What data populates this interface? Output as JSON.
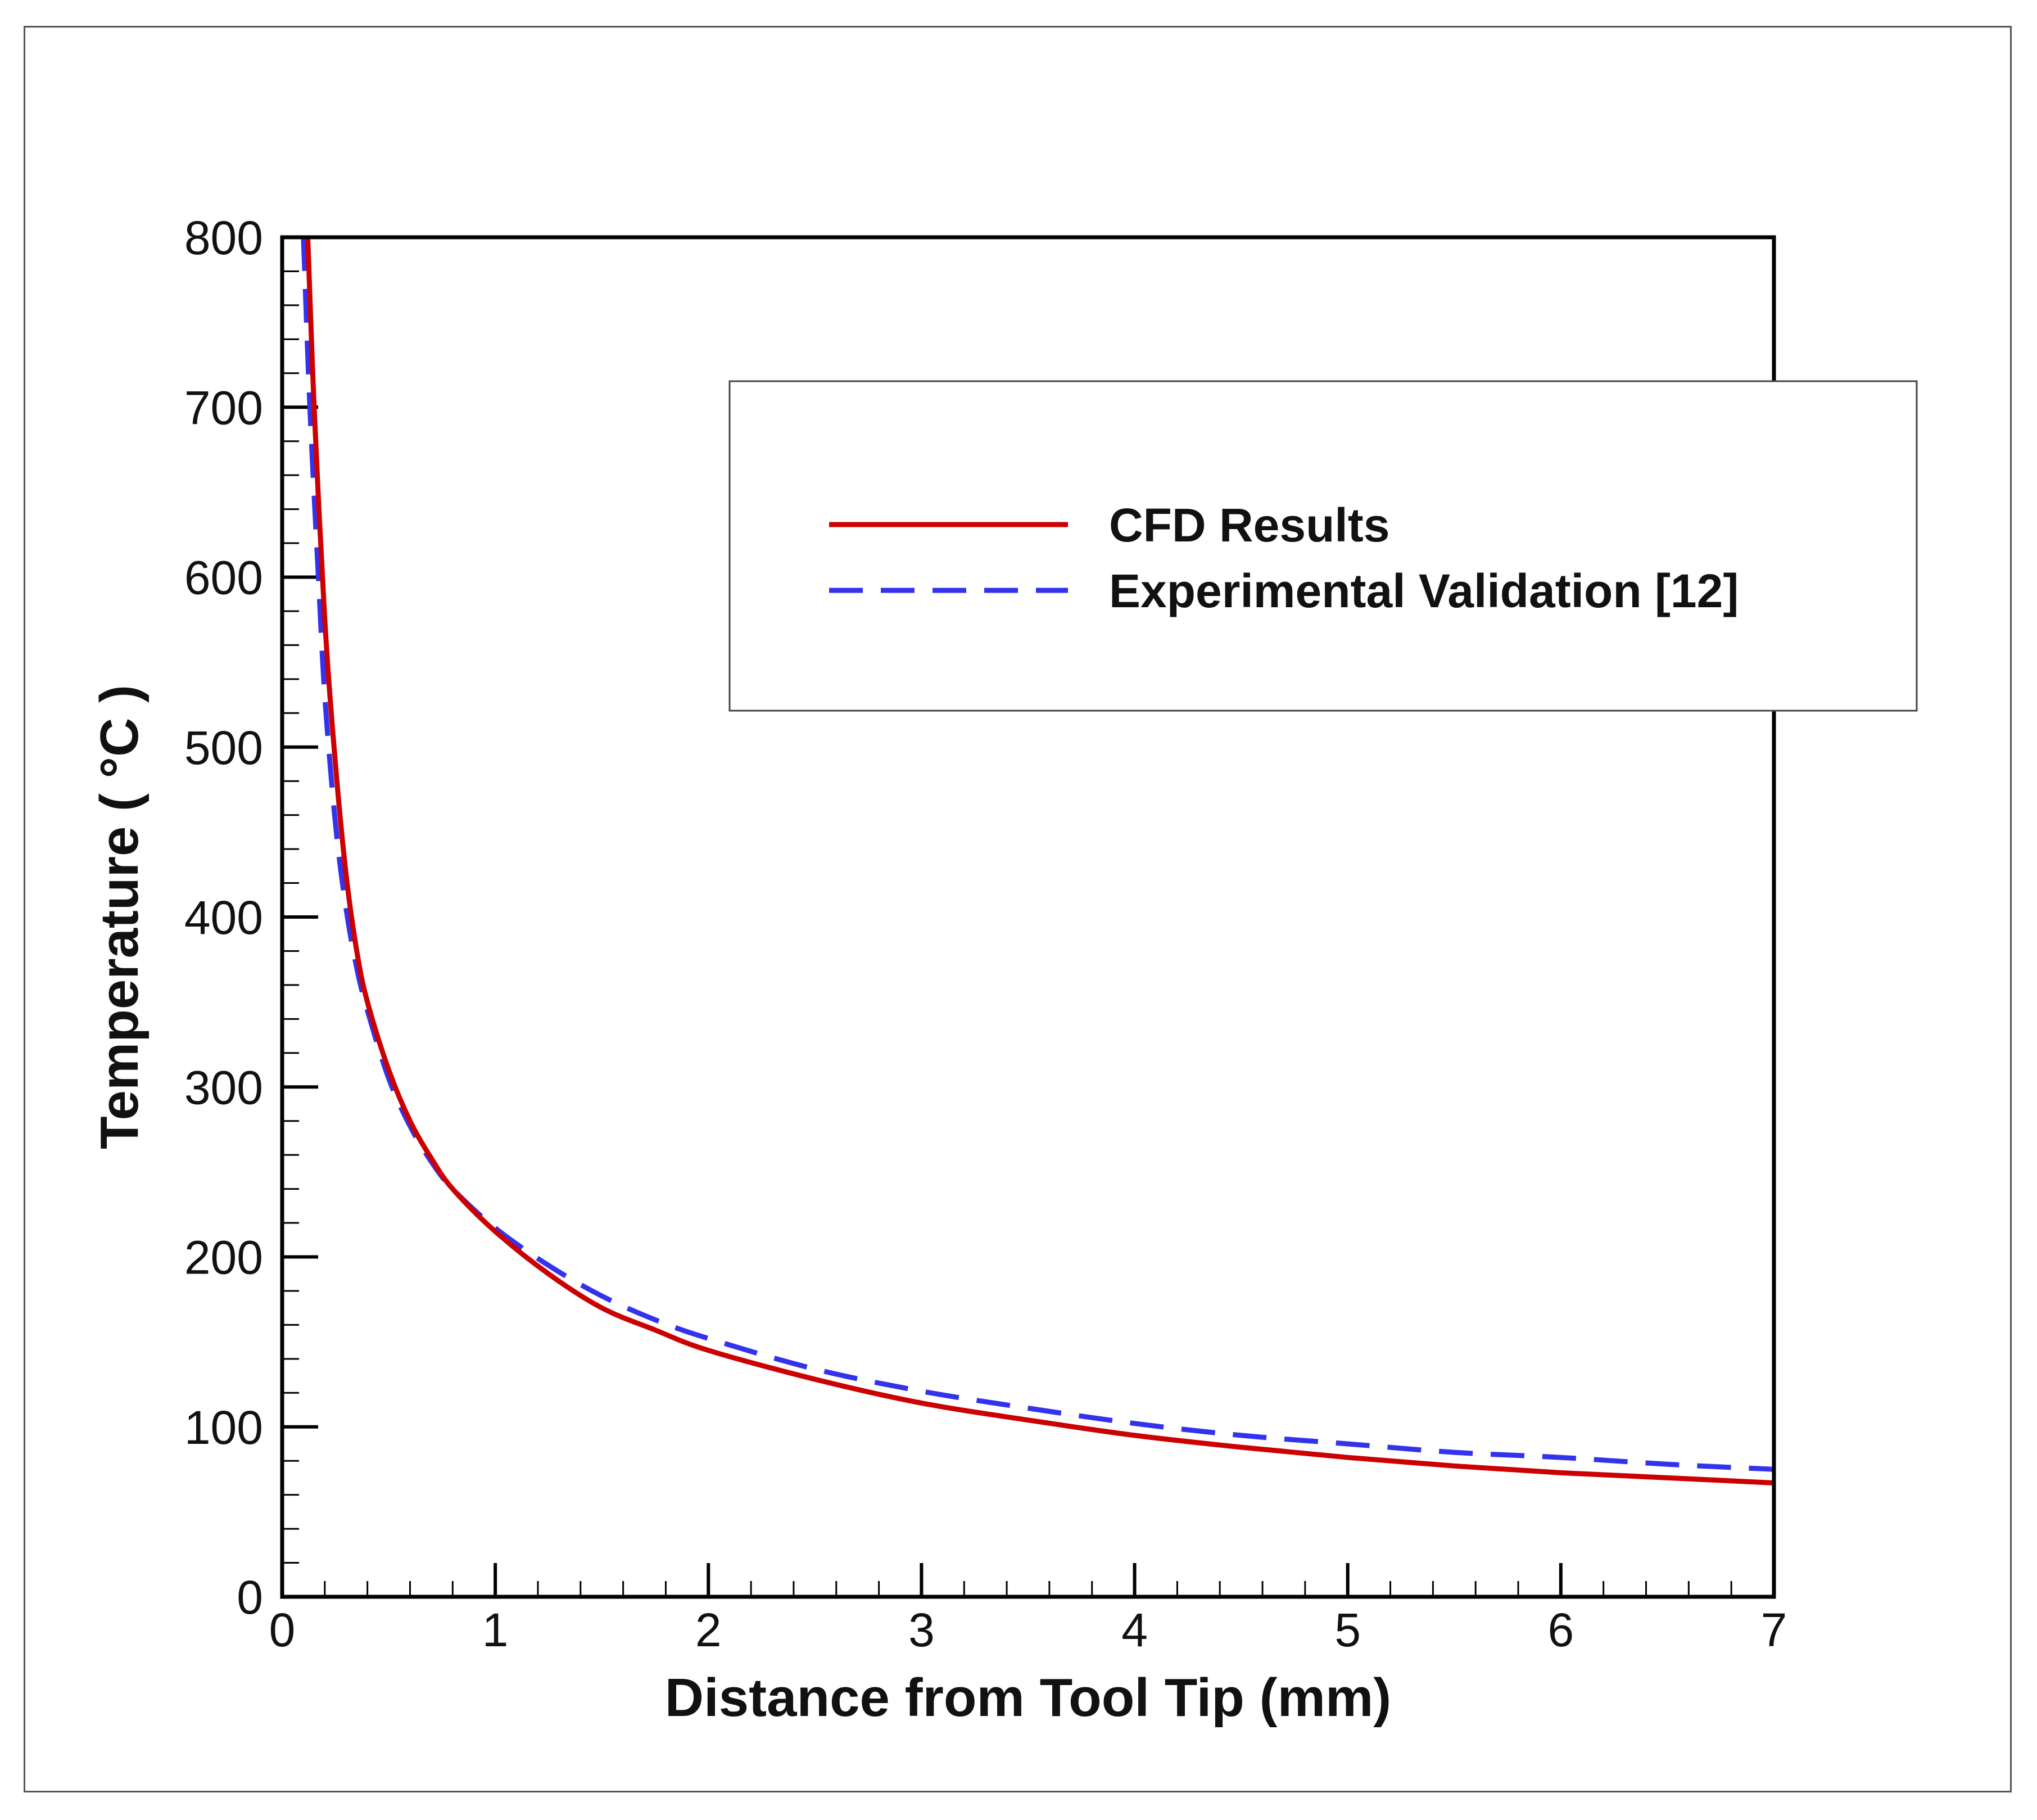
{
  "chart_data": {
    "type": "line",
    "title": "",
    "xlabel": "Distance from Tool Tip (mm)",
    "ylabel": "Temperature ( °C )",
    "xlim": [
      0,
      7
    ],
    "ylim": [
      0,
      800
    ],
    "xticks": [
      0,
      1,
      2,
      3,
      4,
      5,
      6,
      7
    ],
    "yticks": [
      0,
      100,
      200,
      300,
      400,
      500,
      600,
      700,
      800
    ],
    "xtick_labels": [
      "0",
      "1",
      "2",
      "3",
      "4",
      "5",
      "6",
      "7"
    ],
    "ytick_labels": [
      "0",
      "100",
      "200",
      "300",
      "400",
      "500",
      "600",
      "700",
      "800"
    ],
    "grid": false,
    "legend_position": "top-right",
    "series": [
      {
        "name": "CFD Results",
        "color": "#cc0000",
        "style": "solid",
        "x": [
          0.12,
          0.15,
          0.2,
          0.25,
          0.3,
          0.35,
          0.4,
          0.5,
          0.6,
          0.7,
          0.8,
          1.0,
          1.25,
          1.5,
          1.75,
          2.0,
          2.5,
          3.0,
          3.5,
          4.0,
          4.5,
          5.0,
          5.5,
          6.0,
          6.5,
          7.0
        ],
        "y": [
          800,
          700,
          575,
          490,
          425,
          380,
          350,
          310,
          280,
          258,
          240,
          215,
          190,
          170,
          157,
          145,
          128,
          114,
          104,
          95,
          88,
          82,
          77,
          73,
          70,
          67
        ]
      },
      {
        "name": "Experimental Validation [12]",
        "color": "#3333ee",
        "style": "dashed",
        "x": [
          0.1,
          0.13,
          0.17,
          0.2,
          0.25,
          0.3,
          0.35,
          0.4,
          0.5,
          0.6,
          0.7,
          0.8,
          1.0,
          1.25,
          1.5,
          1.75,
          2.0,
          2.5,
          3.0,
          3.5,
          4.0,
          4.5,
          5.0,
          5.5,
          6.0,
          6.5,
          7.0
        ],
        "y": [
          800,
          700,
          600,
          530,
          455,
          405,
          370,
          345,
          305,
          277,
          256,
          240,
          217,
          195,
          177,
          163,
          152,
          134,
          121,
          111,
          102,
          95,
          90,
          85,
          82,
          78,
          75
        ]
      }
    ]
  }
}
